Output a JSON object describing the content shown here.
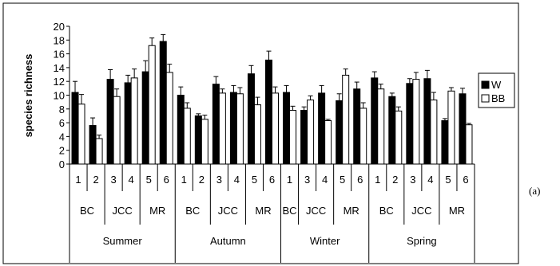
{
  "panel_label": "(a)",
  "chart_data": {
    "type": "bar",
    "title": "",
    "xlabel": "",
    "ylabel": "species richness",
    "ylim": [
      0,
      20
    ],
    "y_ticks": [
      0,
      2,
      4,
      6,
      8,
      10,
      12,
      14,
      16,
      18,
      20
    ],
    "grid": false,
    "legend_position": "right",
    "error_bars": true,
    "groups": [
      {
        "season": "Summer",
        "sites": [
          {
            "name": "BC",
            "sample": [
              "1",
              "2"
            ]
          },
          {
            "name": "JCC",
            "sample": [
              "3",
              "4"
            ]
          },
          {
            "name": "MR",
            "sample": [
              "5",
              "6"
            ]
          }
        ]
      },
      {
        "season": "Autumn",
        "sites": [
          {
            "name": "BC",
            "sample": [
              "1",
              "2"
            ]
          },
          {
            "name": "JCC",
            "sample": [
              "3",
              "4"
            ]
          },
          {
            "name": "MR",
            "sample": [
              "5",
              "6"
            ]
          }
        ]
      },
      {
        "season": "Winter",
        "sites": [
          {
            "name": "BC",
            "sample": [
              "1"
            ]
          },
          {
            "name": "JCC",
            "sample": [
              "3",
              "4"
            ]
          },
          {
            "name": "MR",
            "sample": [
              "5",
              "6"
            ]
          }
        ]
      },
      {
        "season": "Spring",
        "sites": [
          {
            "name": "BC",
            "sample": [
              "1",
              "2"
            ]
          },
          {
            "name": "JCC",
            "sample": [
              "3",
              "4"
            ]
          },
          {
            "name": "MR",
            "sample": [
              "5",
              "6"
            ]
          }
        ]
      }
    ],
    "series": [
      {
        "name": "W",
        "color": "#000000",
        "values": [
          10.4,
          5.6,
          12.3,
          11.8,
          13.4,
          17.8,
          10.0,
          7.0,
          11.6,
          10.4,
          13.1,
          15.1,
          10.4,
          7.8,
          10.3,
          9.2,
          10.9,
          12.5,
          9.8,
          11.7,
          12.4,
          6.3,
          10.2
        ],
        "errors": [
          1.6,
          1.1,
          1.4,
          1.1,
          1.6,
          1.0,
          1.2,
          0.3,
          1.1,
          1.0,
          1.2,
          1.3,
          1.0,
          0.5,
          1.1,
          1.0,
          1.0,
          0.9,
          0.5,
          0.7,
          1.2,
          0.3,
          0.8
        ]
      },
      {
        "name": "BB",
        "color": "#ffffff",
        "values": [
          8.7,
          3.7,
          9.8,
          12.5,
          17.2,
          13.3,
          8.1,
          6.5,
          10.3,
          10.2,
          8.6,
          10.3,
          7.8,
          9.3,
          6.3,
          12.9,
          8.1,
          10.9,
          7.7,
          12.3,
          9.3,
          10.6,
          5.7
        ],
        "errors": [
          1.4,
          0.5,
          1.1,
          1.3,
          1.1,
          1.2,
          0.8,
          0.6,
          0.6,
          0.9,
          1.1,
          0.9,
          0.6,
          0.6,
          0.2,
          0.9,
          0.8,
          0.7,
          0.6,
          1.0,
          1.1,
          0.5,
          0.2
        ]
      }
    ]
  }
}
